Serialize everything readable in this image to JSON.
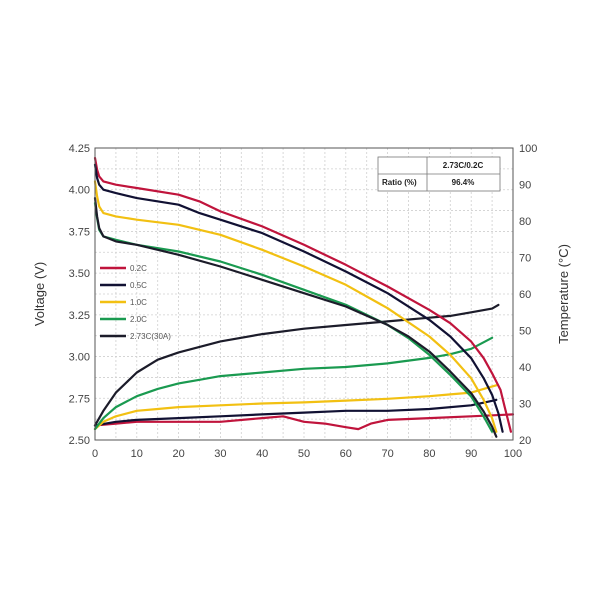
{
  "chart_data": {
    "type": "line",
    "xlabel": "",
    "ylabel": "Voltage (V)",
    "y2label": "Temperature (°C)",
    "xlim": [
      0,
      100
    ],
    "ylim": [
      2.5,
      4.25
    ],
    "y2lim": [
      20,
      100
    ],
    "xticks": [
      "0",
      "10",
      "20",
      "30",
      "40",
      "50",
      "60",
      "70",
      "80",
      "90",
      "100"
    ],
    "yticks": [
      "2.50",
      "2.75",
      "3.00",
      "3.25",
      "3.50",
      "3.75",
      "4.00",
      "4.25"
    ],
    "y2ticks": [
      "20",
      "30",
      "40",
      "50",
      "60",
      "70",
      "80",
      "90",
      "100"
    ],
    "grid": true,
    "legend_position": "left",
    "table": {
      "header": [
        "",
        "2.73C/0.2C"
      ],
      "row": [
        "Ratio (%)",
        "96.4%"
      ]
    },
    "voltage_series": [
      {
        "name": "0.2C",
        "color": "#c0143c",
        "axis": "left",
        "x": [
          0,
          0.5,
          1,
          2,
          5,
          10,
          20,
          25,
          30,
          40,
          50,
          60,
          70,
          80,
          85,
          90,
          93,
          95,
          97,
          98,
          99.5
        ],
        "y": [
          4.19,
          4.12,
          4.08,
          4.05,
          4.03,
          4.01,
          3.97,
          3.93,
          3.87,
          3.78,
          3.67,
          3.55,
          3.42,
          3.28,
          3.2,
          3.09,
          2.99,
          2.9,
          2.8,
          2.7,
          2.55
        ]
      },
      {
        "name": "0.5C",
        "color": "#111133",
        "axis": "left",
        "x": [
          0,
          0.5,
          1,
          2,
          5,
          10,
          20,
          25,
          30,
          40,
          50,
          60,
          70,
          80,
          85,
          90,
          93,
          95,
          96.5,
          97.5
        ],
        "y": [
          4.15,
          4.07,
          4.03,
          4.0,
          3.98,
          3.95,
          3.91,
          3.86,
          3.82,
          3.74,
          3.63,
          3.51,
          3.38,
          3.22,
          3.12,
          2.99,
          2.87,
          2.77,
          2.66,
          2.55
        ]
      },
      {
        "name": "1.0C",
        "color": "#f2c012",
        "axis": "left",
        "x": [
          0,
          0.5,
          1,
          2,
          5,
          10,
          20,
          30,
          40,
          50,
          60,
          70,
          80,
          85,
          90,
          93,
          95,
          96
        ],
        "y": [
          4.05,
          3.96,
          3.9,
          3.86,
          3.84,
          3.82,
          3.79,
          3.73,
          3.64,
          3.54,
          3.43,
          3.29,
          3.12,
          3.01,
          2.87,
          2.74,
          2.63,
          2.55
        ]
      },
      {
        "name": "2.0C",
        "color": "#1a9a50",
        "axis": "left",
        "x": [
          0,
          0.5,
          1,
          2,
          5,
          10,
          20,
          30,
          40,
          50,
          60,
          70,
          75,
          80,
          85,
          90,
          93,
          95
        ],
        "y": [
          3.92,
          3.83,
          3.76,
          3.72,
          3.7,
          3.67,
          3.63,
          3.57,
          3.49,
          3.4,
          3.31,
          3.19,
          3.11,
          3.01,
          2.89,
          2.76,
          2.64,
          2.55
        ]
      },
      {
        "name": "2.73C(30A)",
        "color": "#1c1c2a",
        "axis": "left",
        "x": [
          0,
          0.5,
          1,
          2,
          5,
          10,
          20,
          30,
          40,
          50,
          60,
          70,
          75,
          80,
          85,
          90,
          93,
          95,
          96
        ],
        "y": [
          3.95,
          3.84,
          3.77,
          3.72,
          3.69,
          3.67,
          3.61,
          3.54,
          3.46,
          3.38,
          3.3,
          3.19,
          3.12,
          3.03,
          2.91,
          2.78,
          2.67,
          2.58,
          2.52
        ]
      }
    ],
    "temperature_series": [
      {
        "name": "0.2C",
        "color": "#c0143c",
        "axis": "right",
        "x": [
          0,
          5,
          10,
          20,
          30,
          40,
          45,
          50,
          55,
          60,
          63,
          66,
          70,
          80,
          90,
          100
        ],
        "y": [
          24,
          24.5,
          25,
          25,
          25,
          26,
          26.5,
          25,
          24.5,
          23.5,
          23,
          24.5,
          25.5,
          26,
          26.5,
          27
        ]
      },
      {
        "name": "0.5C",
        "color": "#111133",
        "axis": "right",
        "x": [
          0,
          5,
          10,
          20,
          30,
          40,
          50,
          60,
          70,
          80,
          90,
          96
        ],
        "y": [
          24,
          25,
          25.5,
          26,
          26.5,
          27,
          27.5,
          28,
          28,
          28.5,
          29.5,
          31
        ]
      },
      {
        "name": "1.0C",
        "color": "#f2c012",
        "axis": "right",
        "x": [
          0,
          2,
          5,
          10,
          15,
          20,
          30,
          40,
          50,
          60,
          70,
          80,
          85,
          90,
          93,
          96
        ],
        "y": [
          23,
          25,
          26.5,
          28,
          28.5,
          29,
          29.5,
          30,
          30.3,
          30.8,
          31.3,
          32,
          32.5,
          33,
          34,
          35
        ]
      },
      {
        "name": "2.0C",
        "color": "#1a9a50",
        "axis": "right",
        "x": [
          0,
          2,
          5,
          10,
          15,
          20,
          25,
          30,
          40,
          50,
          60,
          70,
          80,
          85,
          90,
          95
        ],
        "y": [
          23,
          26,
          29,
          32,
          34,
          35.5,
          36.5,
          37.5,
          38.5,
          39.5,
          40,
          41,
          42.5,
          43.5,
          45,
          48
        ]
      },
      {
        "name": "2.73C(30A)",
        "color": "#1c1c2a",
        "axis": "right",
        "x": [
          0,
          2,
          5,
          10,
          15,
          20,
          25,
          30,
          40,
          50,
          60,
          70,
          80,
          85,
          90,
          95,
          96.5
        ],
        "y": [
          24,
          28,
          33,
          38.5,
          42,
          44,
          45.5,
          47,
          49,
          50.5,
          51.5,
          52.5,
          53.5,
          54,
          55,
          56,
          57
        ]
      }
    ]
  }
}
